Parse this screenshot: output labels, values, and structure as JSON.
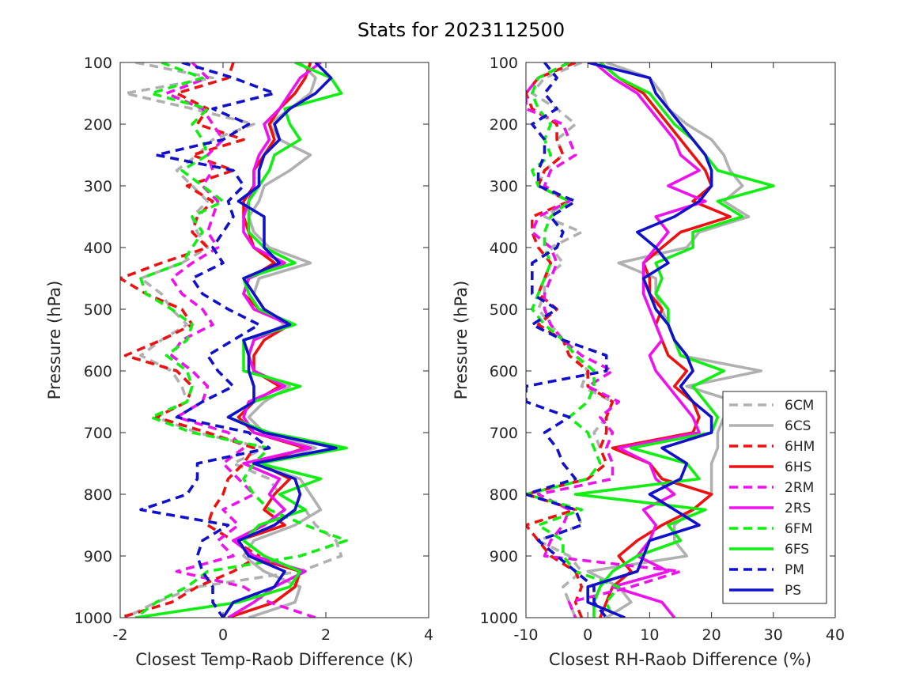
{
  "title": "Stats for 2023112500",
  "chart_data": [
    {
      "type": "line",
      "xlabel": "Closest Temp-Raob Difference (K)",
      "ylabel": "Pressure (hPa)",
      "xlim": [
        -2,
        4
      ],
      "ylim": [
        1000,
        100
      ],
      "xticks": [
        "-2",
        "0",
        "2",
        "4"
      ],
      "yticks": [
        "100",
        "200",
        "300",
        "400",
        "500",
        "600",
        "700",
        "800",
        "900",
        "1000"
      ],
      "y_reversed": true,
      "grid": false,
      "pressure_levels": [
        100,
        125,
        150,
        175,
        200,
        225,
        250,
        275,
        300,
        325,
        350,
        375,
        400,
        425,
        450,
        475,
        500,
        525,
        550,
        575,
        600,
        625,
        650,
        675,
        700,
        725,
        750,
        775,
        800,
        825,
        850,
        875,
        900,
        925,
        950,
        975,
        1000
      ],
      "series": [
        {
          "name": "6CM",
          "values": [
            -1.7,
            -0.2,
            -1.9,
            -0.6,
            0.6,
            -0.2,
            -0.5,
            -0.9,
            -0.6,
            -0.3,
            -0.6,
            -0.5,
            -0.3,
            -0.8,
            -1.6,
            -1.2,
            -1.0,
            -0.7,
            -1.2,
            -1.6,
            -1.0,
            -0.8,
            -0.7,
            -1.3,
            -0.5,
            0.8,
            0.2,
            0.9,
            1.1,
            1.6,
            1.8,
            2.2,
            2.3,
            1.5,
            -0.5,
            -1.3,
            -1.9
          ]
        },
        {
          "name": "6CS",
          "values": [
            1.5,
            1.8,
            1.7,
            1.3,
            0.9,
            1.1,
            1.7,
            1.3,
            0.8,
            0.7,
            0.5,
            0.6,
            0.9,
            1.7,
            0.7,
            0.6,
            0.8,
            1.2,
            0.6,
            0.5,
            0.6,
            1.3,
            0.8,
            0.5,
            0.8,
            1.8,
            0.6,
            1.5,
            1.7,
            1.9,
            1.4,
            0.6,
            0.4,
            0.8,
            1.5,
            1.4,
            0.5
          ]
        },
        {
          "name": "6HM",
          "values": [
            0.2,
            0.1,
            -0.9,
            -0.3,
            -0.5,
            0.4,
            -0.6,
            0.2,
            -0.7,
            -0.2,
            -0.5,
            -0.6,
            -0.3,
            -1.2,
            -2.0,
            -1.5,
            -0.8,
            -0.6,
            -1.2,
            -1.9,
            -0.9,
            -0.6,
            -0.7,
            -1.3,
            -0.3,
            0.6,
            0.4,
            0.1,
            0.0,
            -0.2,
            -0.3,
            0.2,
            0.7,
            0.2,
            -0.5,
            -1.0,
            -2.0
          ]
        },
        {
          "name": "6HS",
          "values": [
            1.7,
            1.6,
            1.4,
            1.1,
            0.9,
            1.0,
            0.8,
            0.6,
            0.6,
            0.4,
            0.4,
            0.5,
            0.6,
            1.0,
            0.5,
            0.4,
            0.7,
            1.3,
            0.8,
            0.6,
            0.6,
            1.1,
            0.6,
            0.3,
            0.6,
            1.6,
            0.7,
            1.3,
            1.0,
            0.8,
            1.2,
            0.3,
            0.5,
            1.5,
            1.4,
            1.0,
            0.1
          ]
        },
        {
          "name": "2RM",
          "values": [
            -0.6,
            -0.3,
            -1.1,
            -0.4,
            -0.2,
            0.0,
            -0.3,
            -0.2,
            -0.4,
            -0.1,
            -0.2,
            -0.3,
            -0.1,
            -0.6,
            -1.0,
            -0.8,
            -0.4,
            -0.2,
            -0.8,
            -1.0,
            -0.6,
            -0.3,
            -0.4,
            -0.9,
            0.1,
            0.4,
            0.0,
            0.3,
            0.6,
            0.0,
            0.3,
            -0.1,
            0.2,
            -0.9,
            0.4,
            0.9,
            1.8
          ]
        },
        {
          "name": "2RS",
          "values": [
            1.9,
            1.5,
            1.3,
            1.1,
            0.8,
            0.9,
            0.7,
            0.6,
            0.6,
            0.5,
            0.4,
            0.4,
            0.6,
            1.2,
            0.5,
            0.4,
            0.6,
            1.3,
            0.6,
            0.5,
            0.6,
            1.2,
            0.5,
            0.4,
            0.6,
            1.7,
            0.4,
            1.1,
            0.9,
            1.2,
            0.8,
            0.2,
            0.6,
            1.6,
            1.0,
            0.6,
            0.1
          ]
        },
        {
          "name": "6FM",
          "values": [
            -1.2,
            -0.4,
            -1.4,
            -0.3,
            -0.6,
            -0.4,
            -0.3,
            -0.8,
            -0.4,
            0.0,
            -0.6,
            -0.4,
            -0.6,
            -0.8,
            -1.6,
            -1.5,
            -1.0,
            -0.6,
            -0.7,
            -1.1,
            -0.7,
            -0.6,
            -0.7,
            -1.4,
            -0.6,
            0.9,
            0.6,
            0.4,
            0.6,
            0.9,
            1.6,
            2.4,
            1.5,
            -0.3,
            -0.7,
            -1.3,
            -1.7
          ]
        },
        {
          "name": "6FS",
          "values": [
            1.4,
            2.1,
            2.3,
            1.2,
            1.3,
            1.5,
            1.0,
            0.9,
            0.7,
            0.5,
            0.5,
            0.5,
            0.8,
            1.4,
            0.4,
            0.5,
            0.7,
            1.4,
            0.4,
            0.4,
            0.4,
            1.5,
            0.6,
            0.1,
            0.9,
            2.4,
            0.7,
            1.9,
            1.1,
            1.6,
            0.7,
            0.4,
            0.8,
            1.5,
            1.3,
            0.3,
            -1.7
          ]
        },
        {
          "name": "PM",
          "values": [
            -0.8,
            0.2,
            1.0,
            -0.2,
            0.5,
            0.0,
            -1.3,
            0.2,
            0.4,
            0.1,
            0.2,
            0.0,
            -0.2,
            0.0,
            -0.6,
            -0.4,
            0.1,
            0.7,
            0.2,
            -0.3,
            -0.1,
            0.2,
            -0.4,
            -0.9,
            0.5,
            0.9,
            -0.5,
            -0.5,
            -0.7,
            -1.6,
            0.1,
            -0.4,
            -0.5,
            -0.4,
            -0.2,
            -0.2,
            0.0
          ]
        },
        {
          "name": "PS",
          "values": [
            1.8,
            2.1,
            1.8,
            1.3,
            1.0,
            1.1,
            0.8,
            0.7,
            0.7,
            0.3,
            0.8,
            0.8,
            0.8,
            1.1,
            0.4,
            0.6,
            0.8,
            1.3,
            0.4,
            0.5,
            0.5,
            0.6,
            0.6,
            0.1,
            0.8,
            2.2,
            0.6,
            1.4,
            1.5,
            1.4,
            1.0,
            0.3,
            0.5,
            1.2,
            1.0,
            0.2,
            0.0
          ]
        }
      ]
    },
    {
      "type": "line",
      "xlabel": "Closest RH-Raob Difference (%)",
      "ylabel": "Pressure (hPa)",
      "xlim": [
        -10,
        40
      ],
      "ylim": [
        1000,
        100
      ],
      "xticks": [
        "-10",
        "0",
        "10",
        "20",
        "30",
        "40"
      ],
      "yticks": [
        "100",
        "200",
        "300",
        "400",
        "500",
        "600",
        "700",
        "800",
        "900",
        "1000"
      ],
      "y_reversed": true,
      "grid": false,
      "legend_position": "lower-right",
      "pressure_levels": [
        100,
        125,
        150,
        175,
        200,
        225,
        250,
        275,
        300,
        325,
        350,
        375,
        400,
        425,
        450,
        475,
        500,
        525,
        550,
        575,
        600,
        625,
        650,
        675,
        700,
        725,
        750,
        775,
        800,
        825,
        850,
        875,
        900,
        925,
        950,
        975,
        1000
      ],
      "series": [
        {
          "name": "6CM",
          "values": [
            -1,
            -7,
            -9,
            -5,
            -2,
            -5,
            -4,
            -7,
            -8,
            -3,
            -7,
            -1,
            -6,
            -4,
            -7,
            -7,
            -8,
            -6,
            -4,
            -2,
            0,
            -1,
            4,
            3,
            1,
            2,
            3,
            0,
            -10,
            -2,
            -1,
            -8,
            -3,
            -1,
            -4,
            -3,
            -2
          ]
        },
        {
          "name": "6CS",
          "values": [
            3,
            10,
            12,
            13,
            16,
            20,
            22,
            23,
            25,
            22,
            26,
            18,
            16,
            5,
            11,
            11,
            12,
            13,
            14,
            15,
            28,
            16,
            24,
            22,
            21,
            21,
            20,
            20,
            20,
            17,
            14,
            14,
            16,
            0,
            5,
            7,
            3
          ]
        },
        {
          "name": "6HM",
          "values": [
            -2,
            -8,
            -10,
            -9,
            -5,
            -5,
            -4,
            -7,
            -8,
            -3,
            -9,
            -9,
            -8,
            -6,
            -7,
            -8,
            -5,
            -8,
            -4,
            -3,
            0,
            0,
            4,
            3,
            3,
            2,
            3,
            0,
            -10,
            -2,
            -10,
            -8,
            -6,
            -2,
            -1,
            -2,
            -1
          ]
        },
        {
          "name": "6HS",
          "values": [
            2,
            5,
            9,
            11,
            13,
            15,
            17,
            19,
            20,
            17,
            23,
            15,
            12,
            9,
            10,
            10,
            12,
            11,
            12,
            13,
            16,
            14,
            17,
            18,
            17,
            4,
            10,
            12,
            20,
            17,
            12,
            8,
            5,
            7,
            4,
            3,
            2
          ]
        },
        {
          "name": "2RM",
          "values": [
            -3,
            -8,
            -10,
            -10,
            -4,
            -3,
            -2,
            -6,
            -7,
            -3,
            -8,
            -9,
            -6,
            -5,
            -6,
            -7,
            -7,
            -6,
            -4,
            -1,
            4,
            0,
            5,
            2,
            4,
            3,
            4,
            4,
            -8,
            -3,
            -4,
            -6,
            -7,
            15,
            7,
            -3,
            -2
          ]
        },
        {
          "name": "2RS",
          "values": [
            1,
            4,
            8,
            10,
            12,
            14,
            15,
            18,
            13,
            19,
            11,
            13,
            11,
            9,
            9,
            9,
            10,
            11,
            12,
            10,
            11,
            13,
            15,
            17,
            18,
            5,
            10,
            11,
            14,
            9,
            11,
            10,
            8,
            13,
            4,
            12,
            14
          ]
        },
        {
          "name": "6FM",
          "values": [
            -3,
            -8,
            -9,
            -8,
            -6,
            -7,
            -6,
            -9,
            -8,
            -3,
            -6,
            -7,
            -7,
            -6,
            -7,
            -8,
            -9,
            -7,
            -4,
            -2,
            1,
            1,
            0,
            -3,
            0,
            1,
            2,
            0,
            -10,
            -1,
            -8,
            -4,
            -4,
            -2,
            5,
            3,
            4
          ]
        },
        {
          "name": "6FS",
          "values": [
            2,
            5,
            10,
            12,
            14,
            17,
            19,
            21,
            30,
            21,
            25,
            17,
            17,
            11,
            12,
            11,
            13,
            13,
            14,
            15,
            22,
            17,
            19,
            21,
            20,
            7,
            16,
            18,
            -2,
            19,
            13,
            15,
            8,
            4,
            2,
            1,
            1
          ]
        },
        {
          "name": "PM",
          "values": [
            -7,
            -5,
            -7,
            -5,
            -9,
            -7,
            -7,
            -8,
            -8,
            -2,
            -6,
            -4,
            -5,
            -9,
            -9,
            -9,
            -5,
            -9,
            -4,
            3,
            3,
            -10,
            -10,
            -3,
            -7,
            -5,
            -4,
            -2,
            -10,
            -2,
            -1,
            -8,
            -5,
            -2,
            1,
            1,
            3
          ]
        },
        {
          "name": "PS",
          "values": [
            0,
            10,
            11,
            13,
            15,
            17,
            19,
            20,
            20,
            18,
            14,
            8,
            11,
            13,
            9,
            10,
            11,
            13,
            14,
            16,
            17,
            15,
            17,
            20,
            20,
            12,
            16,
            15,
            10,
            14,
            18,
            10,
            9,
            8,
            0,
            0,
            6
          ]
        }
      ]
    }
  ],
  "styles": {
    "6CM": {
      "color": "#b0b0b0",
      "dash": true
    },
    "6CS": {
      "color": "#b0b0b0",
      "dash": false
    },
    "6HM": {
      "color": "#ee1111",
      "dash": true
    },
    "6HS": {
      "color": "#ee1111",
      "dash": false
    },
    "2RM": {
      "color": "#ee11ee",
      "dash": true
    },
    "2RS": {
      "color": "#ee11ee",
      "dash": false
    },
    "6FM": {
      "color": "#11ee11",
      "dash": true
    },
    "6FS": {
      "color": "#11ee11",
      "dash": false
    },
    "PM": {
      "color": "#1111cc",
      "dash": true
    },
    "PS": {
      "color": "#1111cc",
      "dash": false
    }
  }
}
